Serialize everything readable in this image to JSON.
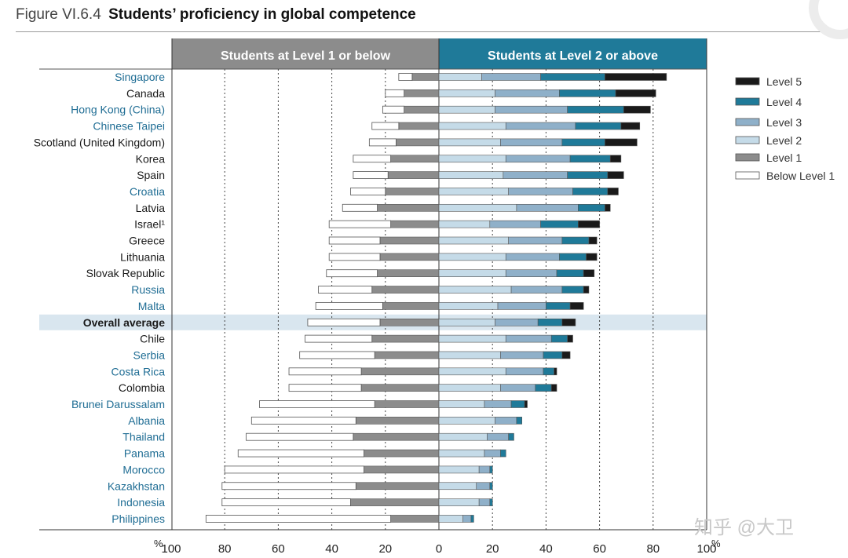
{
  "figure": {
    "number": "Figure VI.6.4",
    "title": "Students’ proficiency in global competence"
  },
  "watermark": "知乎 @大卫",
  "chart_data": {
    "type": "bar",
    "subtype": "diverging-stacked-horizontal",
    "panels": {
      "left": "Students at Level 1 or below",
      "right": "Students at Level 2 or above"
    },
    "unit": "%",
    "x_ticks_left": [
      "100",
      "80",
      "60",
      "40",
      "20",
      "0"
    ],
    "x_ticks_right": [
      "20",
      "40",
      "60",
      "80",
      "100"
    ],
    "xlim_left": [
      100,
      0
    ],
    "xlim_right": [
      0,
      100
    ],
    "grid": "dotted vertical",
    "legend_position": "right",
    "legend_order": [
      "Level 5",
      "Level 4",
      "Level 3",
      "Level 2",
      "Level 1",
      "Below Level 1"
    ],
    "colors": {
      "Below Level 1": "#ffffff",
      "Level 1": "#8c8c8c",
      "Level 2": "#c5dbe8",
      "Level 3": "#8fb0c9",
      "Level 4": "#1f7a99",
      "Level 5": "#1a1a1a",
      "left_header": "#8c8c8c",
      "right_header": "#1f7a99",
      "label_blue": "#1f6d94",
      "highlight_band": "#d9e6ef"
    },
    "series_names": [
      "Below Level 1",
      "Level 1",
      "Level 2",
      "Level 3",
      "Level 4",
      "Level 5"
    ],
    "rows": [
      {
        "label": "Singapore",
        "color": "blue",
        "below1": 5,
        "l1": 10,
        "l2": 16,
        "l3": 22,
        "l4": 24,
        "l5": 23
      },
      {
        "label": "Canada",
        "color": "black",
        "below1": 7,
        "l1": 13,
        "l2": 21,
        "l3": 24,
        "l4": 21,
        "l5": 15
      },
      {
        "label": "Hong Kong (China)",
        "color": "blue",
        "below1": 8,
        "l1": 13,
        "l2": 21,
        "l3": 27,
        "l4": 21,
        "l5": 10
      },
      {
        "label": "Chinese Taipei",
        "color": "blue",
        "below1": 10,
        "l1": 15,
        "l2": 25,
        "l3": 26,
        "l4": 17,
        "l5": 7
      },
      {
        "label": "Scotland (United Kingdom)",
        "color": "black",
        "below1": 10,
        "l1": 16,
        "l2": 23,
        "l3": 23,
        "l4": 16,
        "l5": 12
      },
      {
        "label": "Korea",
        "color": "black",
        "below1": 14,
        "l1": 18,
        "l2": 25,
        "l3": 24,
        "l4": 15,
        "l5": 4
      },
      {
        "label": "Spain",
        "color": "black",
        "below1": 13,
        "l1": 19,
        "l2": 24,
        "l3": 24,
        "l4": 15,
        "l5": 6
      },
      {
        "label": "Croatia",
        "color": "blue",
        "below1": 13,
        "l1": 20,
        "l2": 26,
        "l3": 24,
        "l4": 13,
        "l5": 4
      },
      {
        "label": "Latvia",
        "color": "black",
        "below1": 13,
        "l1": 23,
        "l2": 29,
        "l3": 23,
        "l4": 10,
        "l5": 2
      },
      {
        "label": "Israel¹",
        "color": "black",
        "below1": 23,
        "l1": 18,
        "l2": 19,
        "l3": 19,
        "l4": 14,
        "l5": 8
      },
      {
        "label": "Greece",
        "color": "black",
        "below1": 19,
        "l1": 22,
        "l2": 26,
        "l3": 20,
        "l4": 10,
        "l5": 3
      },
      {
        "label": "Lithuania",
        "color": "black",
        "below1": 19,
        "l1": 22,
        "l2": 25,
        "l3": 20,
        "l4": 10,
        "l5": 4
      },
      {
        "label": "Slovak Republic",
        "color": "black",
        "below1": 19,
        "l1": 23,
        "l2": 25,
        "l3": 19,
        "l4": 10,
        "l5": 4
      },
      {
        "label": "Russia",
        "color": "blue",
        "below1": 20,
        "l1": 25,
        "l2": 27,
        "l3": 19,
        "l4": 8,
        "l5": 2
      },
      {
        "label": "Malta",
        "color": "blue",
        "below1": 25,
        "l1": 21,
        "l2": 22,
        "l3": 18,
        "l4": 9,
        "l5": 5
      },
      {
        "label": "Overall average",
        "color": "bold",
        "highlight": true,
        "below1": 27,
        "l1": 22,
        "l2": 21,
        "l3": 16,
        "l4": 9,
        "l5": 5
      },
      {
        "label": "Chile",
        "color": "black",
        "below1": 25,
        "l1": 25,
        "l2": 25,
        "l3": 17,
        "l4": 6,
        "l5": 2
      },
      {
        "label": "Serbia",
        "color": "blue",
        "below1": 28,
        "l1": 24,
        "l2": 23,
        "l3": 16,
        "l4": 7,
        "l5": 3
      },
      {
        "label": "Costa Rica",
        "color": "blue",
        "below1": 27,
        "l1": 29,
        "l2": 25,
        "l3": 14,
        "l4": 4,
        "l5": 1
      },
      {
        "label": "Colombia",
        "color": "black",
        "below1": 27,
        "l1": 29,
        "l2": 23,
        "l3": 13,
        "l4": 6,
        "l5": 2
      },
      {
        "label": "Brunei Darussalam",
        "color": "blue",
        "below1": 43,
        "l1": 24,
        "l2": 17,
        "l3": 10,
        "l4": 5,
        "l5": 1
      },
      {
        "label": "Albania",
        "color": "blue",
        "below1": 39,
        "l1": 31,
        "l2": 21,
        "l3": 8,
        "l4": 2,
        "l5": 0
      },
      {
        "label": "Thailand",
        "color": "blue",
        "below1": 40,
        "l1": 32,
        "l2": 18,
        "l3": 8,
        "l4": 2,
        "l5": 0
      },
      {
        "label": "Panama",
        "color": "blue",
        "below1": 47,
        "l1": 28,
        "l2": 17,
        "l3": 6,
        "l4": 2,
        "l5": 0
      },
      {
        "label": "Morocco",
        "color": "blue",
        "below1": 52,
        "l1": 28,
        "l2": 15,
        "l3": 4,
        "l4": 1,
        "l5": 0
      },
      {
        "label": "Kazakhstan",
        "color": "blue",
        "below1": 50,
        "l1": 31,
        "l2": 14,
        "l3": 5,
        "l4": 1,
        "l5": 0
      },
      {
        "label": "Indonesia",
        "color": "blue",
        "below1": 48,
        "l1": 33,
        "l2": 15,
        "l3": 4,
        "l4": 1,
        "l5": 0
      },
      {
        "label": "Philippines",
        "color": "blue",
        "below1": 69,
        "l1": 18,
        "l2": 9,
        "l3": 3,
        "l4": 1,
        "l5": 0
      }
    ]
  }
}
